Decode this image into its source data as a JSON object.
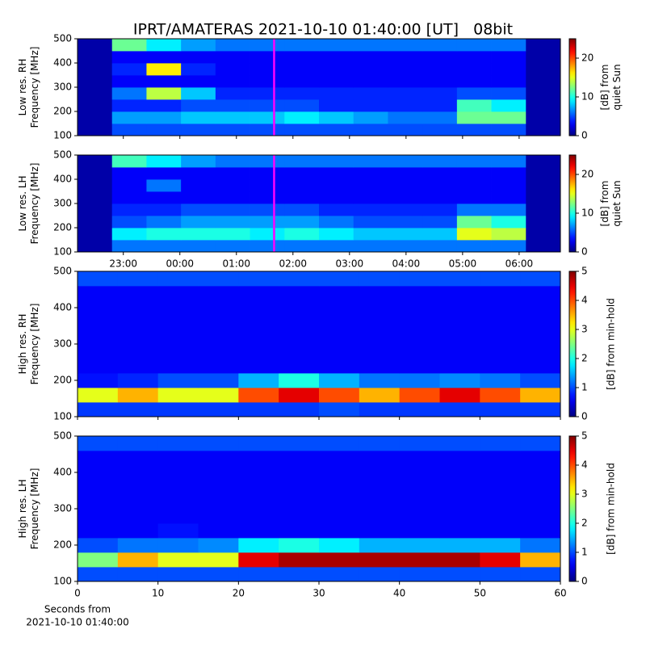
{
  "chart_data": [
    {
      "type": "heatmap",
      "title": "IPRT/AMATERAS 2021-10-10 01:40:00 [UT]   08bit",
      "ylabel": [
        "Low res. RH",
        "Frequency [MHz]"
      ],
      "ylim": [
        100,
        500
      ],
      "yticks": [
        100,
        200,
        300,
        400,
        500
      ],
      "xlim": [
        22.19,
        30.73
      ],
      "clim": [
        0,
        25
      ],
      "cticks": [
        0,
        10,
        20
      ],
      "clabel": [
        "[dB] from",
        "quiet Sun"
      ],
      "cursor": {
        "value": 25.6667,
        "color": "#ff00ff"
      },
      "z": [
        [
          1,
          5,
          5,
          5,
          5,
          5,
          5,
          5,
          5,
          5,
          5,
          5,
          5,
          1
        ],
        [
          1,
          7,
          7,
          8,
          8,
          8,
          9,
          8,
          7,
          6,
          6,
          12,
          12,
          1
        ],
        [
          1,
          4,
          4,
          5,
          5,
          5,
          5,
          4,
          4,
          4,
          4,
          11,
          9,
          1
        ],
        [
          1,
          6,
          14,
          8,
          4,
          4,
          4,
          4,
          4,
          4,
          4,
          5,
          5,
          1
        ],
        [
          1,
          3,
          3,
          3,
          3,
          3,
          3,
          3,
          3,
          3,
          3,
          3,
          3,
          1
        ],
        [
          1,
          4,
          16,
          4,
          3,
          3,
          3,
          3,
          3,
          3,
          3,
          3,
          3,
          1
        ],
        [
          1,
          3,
          3,
          3,
          3,
          3,
          3,
          3,
          3,
          3,
          3,
          3,
          3,
          1
        ],
        [
          1,
          12,
          9,
          7,
          6,
          6,
          6,
          6,
          6,
          6,
          6,
          6,
          6,
          1
        ]
      ]
    },
    {
      "type": "heatmap",
      "ylabel": [
        "Low res. LH",
        "Frequency [MHz]"
      ],
      "ylim": [
        100,
        500
      ],
      "yticks": [
        100,
        200,
        300,
        400,
        500
      ],
      "xlim": [
        22.19,
        30.73
      ],
      "xticks": [
        {
          "value": 23,
          "label": "23:00"
        },
        {
          "value": 24,
          "label": "00:00"
        },
        {
          "value": 25,
          "label": "01:00"
        },
        {
          "value": 26,
          "label": "02:00"
        },
        {
          "value": 27,
          "label": "03:00"
        },
        {
          "value": 28,
          "label": "04:00"
        },
        {
          "value": 29,
          "label": "05:00"
        },
        {
          "value": 30,
          "label": "06:00"
        }
      ],
      "clim": [
        0,
        25
      ],
      "cticks": [
        0,
        10,
        20
      ],
      "clabel": [
        "[dB] from",
        "quiet Sun"
      ],
      "cursor": {
        "value": 25.6667,
        "color": "#ff00ff"
      },
      "z": [
        [
          1,
          6,
          6,
          6,
          6,
          6,
          6,
          6,
          6,
          6,
          6,
          6,
          6,
          1
        ],
        [
          1,
          9,
          10,
          10,
          10,
          9,
          10,
          9,
          8,
          8,
          8,
          15,
          14,
          1
        ],
        [
          1,
          5,
          6,
          7,
          7,
          7,
          7,
          6,
          5,
          5,
          5,
          12,
          10,
          1
        ],
        [
          1,
          4,
          4,
          5,
          5,
          5,
          5,
          4,
          4,
          4,
          4,
          6,
          6,
          1
        ],
        [
          1,
          3,
          3,
          3,
          3,
          3,
          3,
          3,
          3,
          3,
          3,
          3,
          3,
          1
        ],
        [
          1,
          3,
          6,
          3,
          3,
          3,
          3,
          3,
          3,
          3,
          3,
          3,
          3,
          1
        ],
        [
          1,
          3,
          3,
          3,
          3,
          3,
          3,
          3,
          3,
          3,
          3,
          3,
          3,
          1
        ],
        [
          1,
          11,
          9,
          7,
          6,
          6,
          6,
          6,
          6,
          6,
          6,
          6,
          6,
          1
        ]
      ]
    },
    {
      "type": "heatmap",
      "ylabel": [
        "High res. RH",
        "Frequency [MHz]"
      ],
      "ylim": [
        100,
        500
      ],
      "yticks": [
        100,
        200,
        300,
        400,
        500
      ],
      "xlim": [
        0,
        60
      ],
      "clim": [
        0,
        5
      ],
      "cticks": [
        0,
        1,
        2,
        3,
        4,
        5
      ],
      "clabel": [
        "[dB] from min-hold"
      ],
      "z": [
        [
          0.9,
          0.9,
          0.9,
          0.9,
          0.9,
          0.9,
          1,
          0.9,
          0.9,
          0.9,
          0.9,
          0.9
        ],
        [
          3,
          3.5,
          3,
          3,
          4,
          4.5,
          4,
          3.5,
          4,
          4.5,
          4,
          3.5
        ],
        [
          0.7,
          0.8,
          1,
          1,
          1.5,
          2,
          1.5,
          1.2,
          1.2,
          1.3,
          1.2,
          1
        ],
        [
          0.6,
          0.6,
          0.6,
          0.6,
          0.6,
          0.6,
          0.6,
          0.6,
          0.6,
          0.6,
          0.6,
          0.6
        ],
        [
          0.6,
          0.6,
          0.6,
          0.6,
          0.6,
          0.6,
          0.6,
          0.6,
          0.6,
          0.6,
          0.6,
          0.6
        ],
        [
          0.6,
          0.6,
          0.6,
          0.6,
          0.6,
          0.6,
          0.6,
          0.6,
          0.6,
          0.6,
          0.6,
          0.6
        ],
        [
          0.6,
          0.6,
          0.6,
          0.6,
          0.6,
          0.6,
          0.6,
          0.6,
          0.6,
          0.6,
          0.6,
          0.6
        ],
        [
          0.6,
          0.6,
          0.6,
          0.6,
          0.6,
          0.6,
          0.6,
          0.6,
          0.6,
          0.6,
          0.6,
          0.6
        ],
        [
          0.6,
          0.6,
          0.6,
          0.6,
          0.6,
          0.6,
          0.6,
          0.6,
          0.6,
          0.6,
          0.6,
          0.6
        ],
        [
          1,
          1,
          1,
          1,
          1,
          1,
          1,
          1,
          1,
          1,
          1,
          1
        ]
      ]
    },
    {
      "type": "heatmap",
      "ylabel": [
        "High res. LH",
        "Frequency [MHz]"
      ],
      "ylim": [
        100,
        500
      ],
      "yticks": [
        100,
        200,
        300,
        400,
        500
      ],
      "xlim": [
        0,
        60
      ],
      "xticks": [
        0,
        10,
        20,
        30,
        40,
        50,
        60
      ],
      "xlabel": [
        "Seconds from",
        "2021-10-10 01:40:00"
      ],
      "clim": [
        0,
        5
      ],
      "cticks": [
        0,
        1,
        2,
        3,
        4,
        5
      ],
      "clabel": [
        "[dB] from min-hold"
      ],
      "z": [
        [
          1,
          1,
          1,
          1,
          1,
          1,
          1,
          1,
          1,
          1,
          1,
          1
        ],
        [
          2.5,
          3.5,
          3,
          3,
          4.5,
          4.8,
          4.8,
          4.8,
          4.8,
          4.8,
          4.5,
          3.5
        ],
        [
          1,
          1.2,
          1.2,
          1.3,
          1.8,
          2,
          1.8,
          1.5,
          1.5,
          1.5,
          1.5,
          1.2
        ],
        [
          0.6,
          0.6,
          0.7,
          0.6,
          0.6,
          0.6,
          0.6,
          0.6,
          0.6,
          0.6,
          0.6,
          0.6
        ],
        [
          0.6,
          0.6,
          0.6,
          0.6,
          0.6,
          0.6,
          0.6,
          0.6,
          0.6,
          0.6,
          0.6,
          0.6
        ],
        [
          0.6,
          0.6,
          0.6,
          0.6,
          0.6,
          0.6,
          0.6,
          0.6,
          0.6,
          0.6,
          0.6,
          0.6
        ],
        [
          0.6,
          0.6,
          0.6,
          0.6,
          0.6,
          0.6,
          0.6,
          0.6,
          0.6,
          0.6,
          0.6,
          0.6
        ],
        [
          0.6,
          0.6,
          0.6,
          0.6,
          0.6,
          0.6,
          0.6,
          0.6,
          0.6,
          0.6,
          0.6,
          0.6
        ],
        [
          0.6,
          0.6,
          0.6,
          0.6,
          0.6,
          0.6,
          0.6,
          0.6,
          0.6,
          0.6,
          0.6,
          0.6
        ],
        [
          1,
          1,
          1,
          1,
          1,
          1,
          1,
          1,
          1,
          1,
          1,
          1
        ]
      ]
    }
  ]
}
